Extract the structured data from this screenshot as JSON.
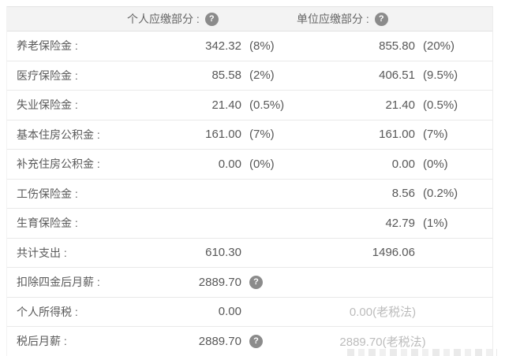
{
  "header": {
    "personal_label": "个人应缴部分 :",
    "company_label": "单位应缴部分 :"
  },
  "icons": {
    "help_glyph": "?"
  },
  "rows": [
    {
      "label": "养老保险金 :",
      "personal_value": "342.32",
      "personal_percent": "(8%)",
      "company_value": "855.80",
      "company_percent": "(20%)"
    },
    {
      "label": "医疗保险金 :",
      "personal_value": "85.58",
      "personal_percent": "(2%)",
      "company_value": "406.51",
      "company_percent": "(9.5%)"
    },
    {
      "label": "失业保险金 :",
      "personal_value": "21.40",
      "personal_percent": "(0.5%)",
      "company_value": "21.40",
      "company_percent": "(0.5%)"
    },
    {
      "label": "基本住房公积金 :",
      "personal_value": "161.00",
      "personal_percent": "(7%)",
      "company_value": "161.00",
      "company_percent": "(7%)"
    },
    {
      "label": "补充住房公积金 :",
      "personal_value": "0.00",
      "personal_percent": "(0%)",
      "company_value": "0.00",
      "company_percent": "(0%)"
    },
    {
      "label": "工伤保险金 :",
      "company_value": "8.56",
      "company_percent": "(0.2%)"
    },
    {
      "label": "生育保险金 :",
      "company_value": "42.79",
      "company_percent": "(1%)"
    },
    {
      "label": "共计支出 :",
      "personal_value": "610.30",
      "company_value": "1496.06"
    },
    {
      "label": "扣除四金后月薪 :",
      "personal_value": "2889.70"
    },
    {
      "label": "个人所得税 :",
      "personal_value": "0.00",
      "company_note": "0.00(老税法)"
    },
    {
      "label": "税后月薪 :",
      "personal_value": "2889.70",
      "company_note": "2889.70(老税法)"
    }
  ]
}
